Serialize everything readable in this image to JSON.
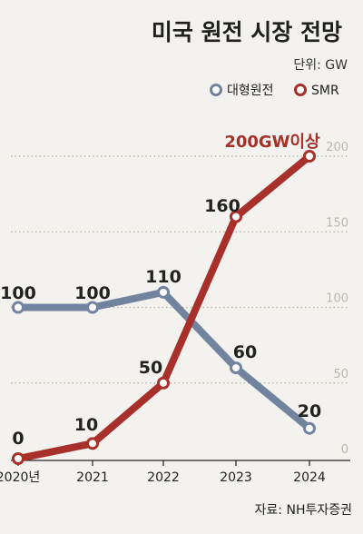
{
  "chart_data": {
    "type": "line",
    "title": "미국 원전 시장 전망",
    "unit_label": "단위: GW",
    "source": "자료: NH투자증권",
    "categories": [
      "2020년",
      "2021",
      "2022",
      "2023",
      "2024"
    ],
    "ylim": [
      0,
      200
    ],
    "yticks": [
      "0",
      "50",
      "100",
      "150",
      "200"
    ],
    "grid": true,
    "legend_position": "top-right",
    "series": [
      {
        "name": "대형원전",
        "values": [
          100,
          100,
          110,
          60,
          20
        ],
        "labels": [
          "100",
          "100",
          "110",
          "60",
          "20"
        ],
        "color": "#7283a0"
      },
      {
        "name": "SMR",
        "values": [
          0,
          10,
          50,
          160,
          200
        ],
        "labels": [
          "0",
          "10",
          "50",
          "160",
          ""
        ],
        "color": "#a8302b"
      }
    ],
    "annotation": "200GW이상"
  }
}
